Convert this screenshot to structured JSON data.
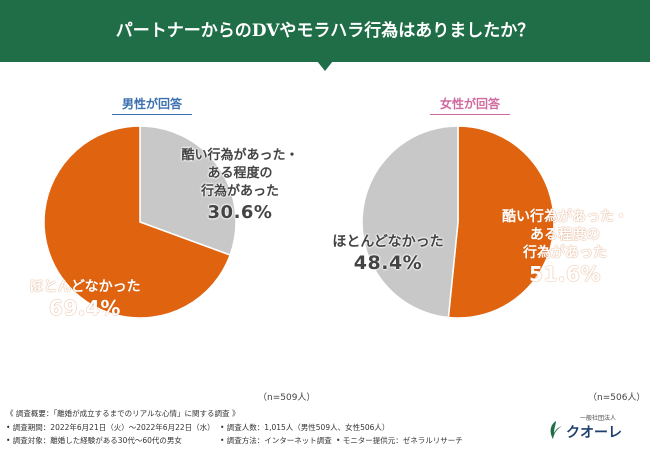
{
  "header": {
    "title": "パートナーからのDVやモラハラ行為はありましたか？",
    "color": "#1f6e47"
  },
  "chart_data": [
    {
      "type": "pie",
      "title": "男性が回答",
      "n_label": "（n=509人）",
      "slices": [
        {
          "label": "酷い行為があった・ある程度の行為があった",
          "label_lines": [
            "酷い行為があった・",
            "ある程度の",
            "行為があった"
          ],
          "value": 30.6,
          "value_text": "30.6%",
          "color": "#c8c8c8"
        },
        {
          "label": "ほとんどなかった",
          "label_lines": [
            "ほとんどなかった"
          ],
          "value": 69.4,
          "value_text": "69.4%",
          "color": "#e0630f"
        }
      ]
    },
    {
      "type": "pie",
      "title": "女性が回答",
      "n_label": "（n=506人）",
      "slices": [
        {
          "label": "酷い行為があった・ある程度の行為があった",
          "label_lines": [
            "酷い行為があった・",
            "ある程度の",
            "行為があった"
          ],
          "value": 51.6,
          "value_text": "51.6%",
          "color": "#e0630f"
        },
        {
          "label": "ほとんどなかった",
          "label_lines": [
            "ほとんどなかった"
          ],
          "value": 48.4,
          "value_text": "48.4%",
          "color": "#c8c8c8"
        }
      ]
    }
  ],
  "footer": {
    "line1": "《 調査概要：「離婚が成立するまでのリアルな心情」に関する調査 》",
    "period": "• 調査期間：2022年6月21日（火）～2022年6月22日（水）",
    "count": "• 調査人数：1,015人（男性509人、女性506人）",
    "target": "• 調査対象：離婚した経験がある30代～60代の男女",
    "method": "• 調査方法：インターネット調査",
    "provider": "• モニター提供元：ゼネラルリサーチ"
  },
  "logo": {
    "small_text": "一般社団法人",
    "name": "クオーレ"
  }
}
